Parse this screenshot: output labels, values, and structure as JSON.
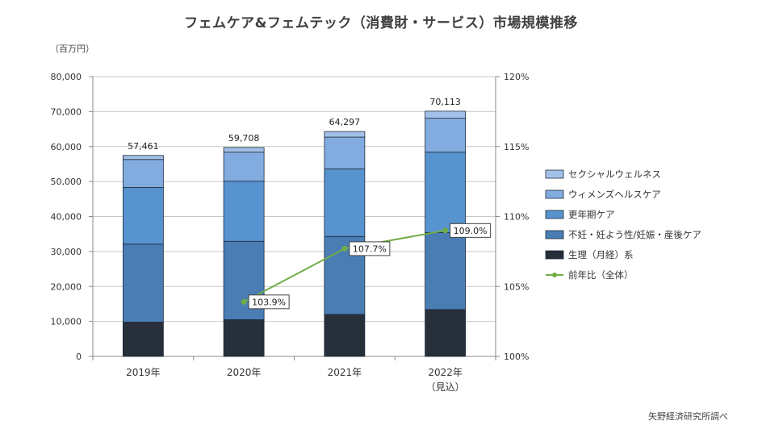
{
  "chart_data": {
    "type": "bar",
    "stacked": true,
    "title": "フェムケア&フェムテック（消費財・サービス）市場規模推移",
    "ylabel": "（百万円）",
    "ylim": [
      0,
      80000
    ],
    "y_ticks": [
      "0",
      "10,000",
      "20,000",
      "30,000",
      "40,000",
      "50,000",
      "60,000",
      "70,000",
      "80,000"
    ],
    "y2lim": [
      100,
      120
    ],
    "y2_ticks": [
      "100%",
      "105%",
      "110%",
      "115%",
      "120%"
    ],
    "categories": [
      "2019年",
      "2020年",
      "2021年",
      "2022年"
    ],
    "category_sublabels": [
      "",
      "",
      "",
      "（見込）"
    ],
    "totals": [
      57461,
      59708,
      64297,
      70113
    ],
    "total_labels": [
      "57,461",
      "59,708",
      "64,297",
      "70,113"
    ],
    "series": [
      {
        "name": "生理（月経）系",
        "color": "#262f3a",
        "values": [
          9800,
          10500,
          12000,
          13400
        ]
      },
      {
        "name": "不妊・妊よう性/妊娠・産後ケア",
        "color": "#4a7db4",
        "values": [
          22300,
          22400,
          22300,
          22000
        ]
      },
      {
        "name": "更年期ケア",
        "color": "#5793ce",
        "values": [
          16200,
          17200,
          19300,
          23000
        ]
      },
      {
        "name": "ウィメンズヘルスケア",
        "color": "#82ace0",
        "values": [
          8000,
          8300,
          9100,
          9700
        ]
      },
      {
        "name": "セクシャルウェルネス",
        "color": "#a3c1e8",
        "values": [
          1161,
          1308,
          1597,
          2013
        ]
      }
    ],
    "line": {
      "name": "前年比（全体）",
      "color": "#70ad47",
      "axis": "secondary",
      "categories": [
        "2020年",
        "2021年",
        "2022年"
      ],
      "values": [
        103.9,
        107.7,
        109.0
      ],
      "labels": [
        "103.9%",
        "107.7%",
        "109.0%"
      ]
    },
    "legend_order": [
      "セクシャルウェルネス",
      "ウィメンズヘルスケア",
      "更年期ケア",
      "不妊・妊よう性/妊娠・産後ケア",
      "生理（月経）系",
      "前年比（全体）"
    ],
    "legend_position": "right",
    "grid": true
  },
  "source_note": "矢野経済研究所調べ"
}
